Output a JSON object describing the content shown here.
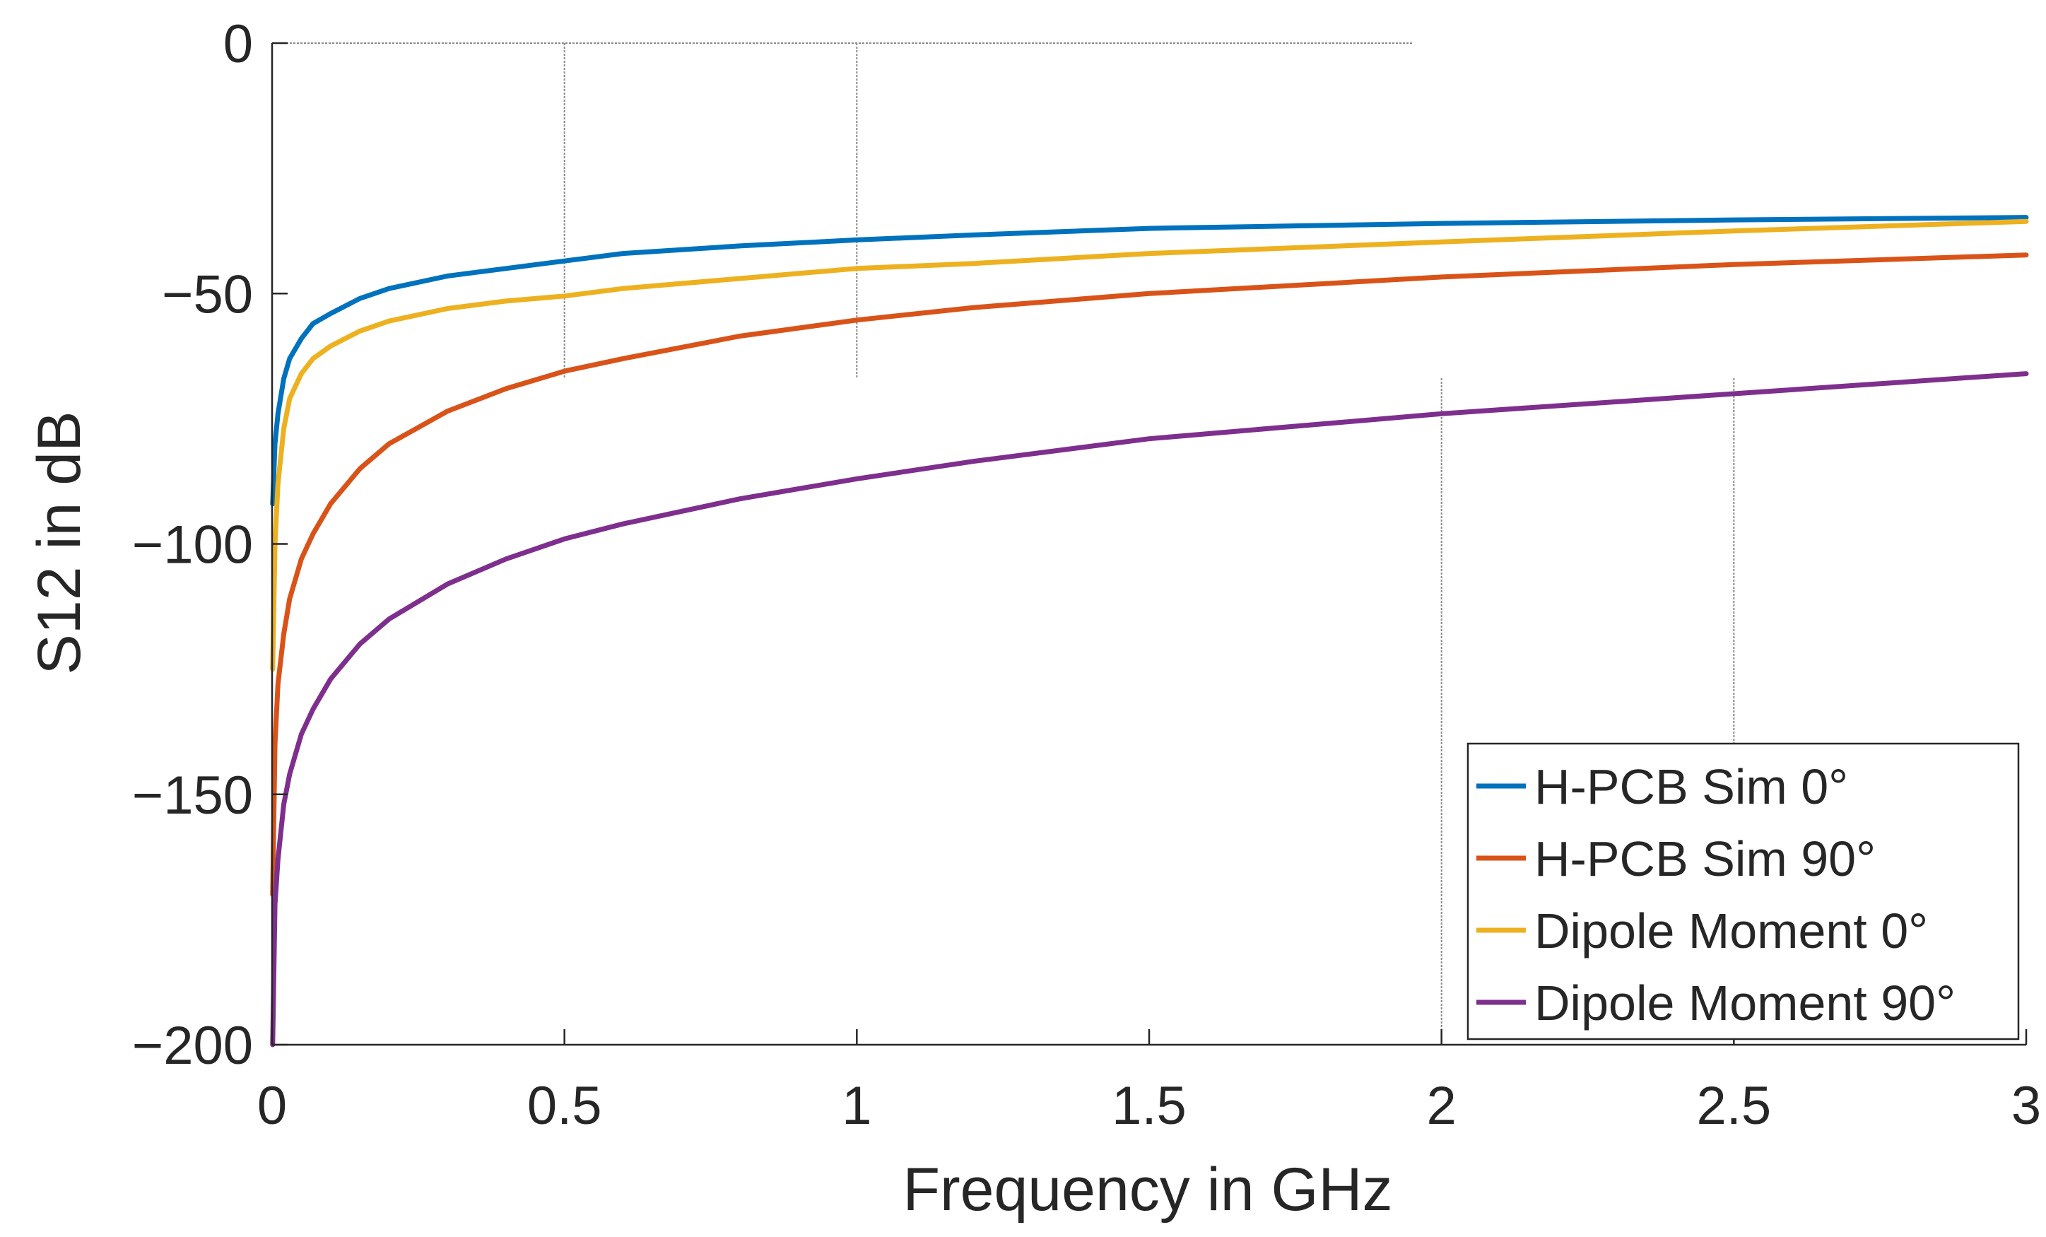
{
  "chart_data": {
    "type": "line",
    "title": "",
    "xlabel": "Frequency in GHz",
    "ylabel": "S12 in dB",
    "xlim": [
      0,
      3
    ],
    "ylim": [
      -200,
      0
    ],
    "grid": "partial",
    "x_ticks": [
      0,
      0.5,
      1,
      1.5,
      2,
      2.5,
      3
    ],
    "x_tick_labels": [
      "0",
      "0.5",
      "1",
      "1.5",
      "2",
      "2.5",
      "3"
    ],
    "y_ticks": [
      0,
      -50,
      -100,
      -150,
      -200
    ],
    "y_tick_labels": [
      "0",
      "−50",
      "−100",
      "−150",
      "−200"
    ],
    "legend_position": "bottom-right",
    "series": [
      {
        "name": "H-PCB Sim 0°",
        "color": "#0072BD",
        "x": [
          0.001,
          0.005,
          0.01,
          0.02,
          0.03,
          0.05,
          0.07,
          0.1,
          0.15,
          0.2,
          0.3,
          0.4,
          0.5,
          0.6,
          0.8,
          1.0,
          1.2,
          1.5,
          2.0,
          2.5,
          3.0
        ],
        "y": [
          -92,
          -80,
          -74,
          -67,
          -63,
          -59,
          -56,
          -54,
          -51,
          -49,
          -46.5,
          -45,
          -43.5,
          -42,
          -40.5,
          -39.3,
          -38.3,
          -37,
          -36,
          -35.3,
          -34.8
        ]
      },
      {
        "name": "H-PCB Sim 90°",
        "color": "#D95319",
        "x": [
          0.001,
          0.005,
          0.01,
          0.02,
          0.03,
          0.05,
          0.07,
          0.1,
          0.15,
          0.2,
          0.3,
          0.4,
          0.5,
          0.6,
          0.8,
          1.0,
          1.2,
          1.5,
          2.0,
          2.5,
          3.0
        ],
        "y": [
          -170,
          -140,
          -128,
          -118,
          -111,
          -103,
          -98,
          -92,
          -85,
          -80,
          -73.5,
          -69,
          -65.5,
          -63,
          -58.5,
          -55.3,
          -52.8,
          -50,
          -46.7,
          -44.2,
          -42.3
        ]
      },
      {
        "name": "Dipole Moment 0°",
        "color": "#EDB120",
        "x": [
          0.001,
          0.005,
          0.01,
          0.02,
          0.03,
          0.05,
          0.07,
          0.1,
          0.15,
          0.2,
          0.3,
          0.4,
          0.5,
          0.6,
          0.8,
          1.0,
          1.2,
          1.5,
          2.0,
          2.5,
          3.0
        ],
        "y": [
          -125,
          -100,
          -88,
          -77,
          -71,
          -66,
          -63,
          -60.5,
          -57.5,
          -55.5,
          -53,
          -51.5,
          -50.5,
          -49,
          -47,
          -45,
          -44,
          -42,
          -39.7,
          -37.5,
          -35.6
        ]
      },
      {
        "name": "Dipole Moment 90°",
        "color": "#7E2F8E",
        "x": [
          0.001,
          0.005,
          0.01,
          0.02,
          0.03,
          0.05,
          0.07,
          0.1,
          0.15,
          0.2,
          0.3,
          0.4,
          0.5,
          0.6,
          0.8,
          1.0,
          1.2,
          1.5,
          2.0,
          2.5,
          3.0
        ],
        "y": [
          -200,
          -172,
          -163,
          -152,
          -146,
          -138,
          -133,
          -127,
          -120,
          -115,
          -108,
          -103,
          -99,
          -96,
          -91,
          -87,
          -83.5,
          -79,
          -74,
          -70,
          -66
        ]
      }
    ]
  }
}
